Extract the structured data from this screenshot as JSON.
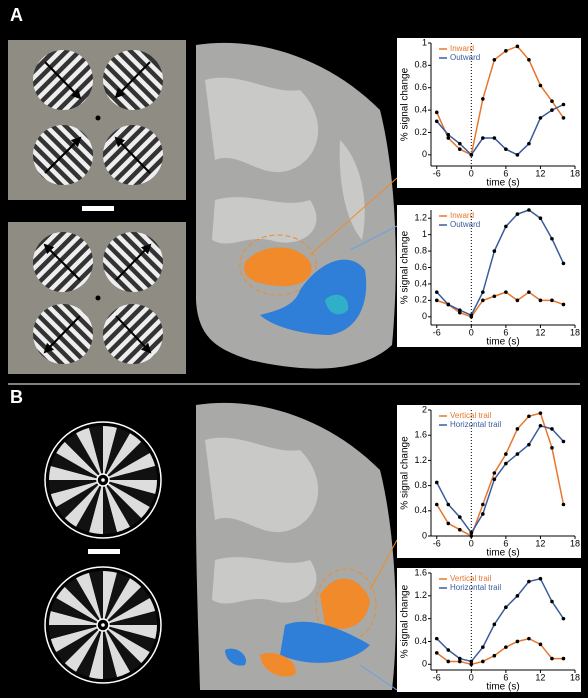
{
  "panel_labels": [
    "A",
    "B"
  ],
  "chart_data": [
    {
      "type": "line",
      "xlabel": "time (s)",
      "ylabel": "% signal change",
      "x": [
        -6,
        -4,
        -2,
        0,
        2,
        4,
        6,
        8,
        10,
        12,
        14,
        16
      ],
      "xlim": [
        -7,
        18
      ],
      "xticks": [
        -6,
        0,
        6,
        12,
        18
      ],
      "ylim": [
        -0.1,
        1.0
      ],
      "yticks": [
        0,
        0.2,
        0.4,
        0.6,
        0.8,
        1
      ],
      "series": [
        {
          "name": "Inward",
          "color": "#e8762d",
          "values": [
            0.38,
            0.15,
            0.05,
            0.0,
            0.5,
            0.85,
            0.93,
            0.97,
            0.85,
            0.62,
            0.48,
            0.33
          ]
        },
        {
          "name": "Outward",
          "color": "#3a5c9c",
          "values": [
            0.3,
            0.18,
            0.1,
            0.0,
            0.15,
            0.15,
            0.05,
            0.0,
            0.1,
            0.33,
            0.4,
            0.45
          ]
        }
      ]
    },
    {
      "type": "line",
      "xlabel": "time (s)",
      "ylabel": "% signal change",
      "x": [
        -6,
        -4,
        -2,
        0,
        2,
        4,
        6,
        8,
        10,
        12,
        14,
        16
      ],
      "xlim": [
        -7,
        18
      ],
      "xticks": [
        -6,
        0,
        6,
        12,
        18
      ],
      "ylim": [
        -0.1,
        1.3
      ],
      "yticks": [
        0,
        0.2,
        0.4,
        0.6,
        0.8,
        1,
        1.2
      ],
      "series": [
        {
          "name": "Inward",
          "color": "#e8762d",
          "values": [
            0.2,
            0.15,
            0.05,
            0.0,
            0.2,
            0.25,
            0.3,
            0.2,
            0.3,
            0.2,
            0.2,
            0.15
          ]
        },
        {
          "name": "Outward",
          "color": "#3a5c9c",
          "values": [
            0.3,
            0.15,
            0.08,
            0.02,
            0.3,
            0.8,
            1.1,
            1.25,
            1.3,
            1.2,
            0.95,
            0.65
          ]
        }
      ]
    },
    {
      "type": "line",
      "xlabel": "time (s)",
      "ylabel": "% signal change",
      "x": [
        -6,
        -4,
        -2,
        0,
        2,
        4,
        6,
        8,
        10,
        12,
        14,
        16
      ],
      "xlim": [
        -7,
        18
      ],
      "xticks": [
        -6,
        0,
        6,
        12,
        18
      ],
      "ylim": [
        0,
        2
      ],
      "yticks": [
        0,
        0.4,
        0.8,
        1.2,
        1.6,
        2
      ],
      "series": [
        {
          "name": "Vertical trail",
          "color": "#e8762d",
          "values": [
            0.5,
            0.2,
            0.1,
            0.0,
            0.5,
            1.0,
            1.3,
            1.7,
            1.9,
            1.95,
            1.4,
            0.5
          ]
        },
        {
          "name": "Horizontal trail",
          "color": "#3a5c9c",
          "values": [
            0.85,
            0.5,
            0.3,
            0.05,
            0.35,
            0.9,
            1.15,
            1.3,
            1.45,
            1.75,
            1.7,
            1.5
          ]
        }
      ]
    },
    {
      "type": "line",
      "xlabel": "time (s)",
      "ylabel": "% signal change",
      "x": [
        -6,
        -4,
        -2,
        0,
        2,
        4,
        6,
        8,
        10,
        12,
        14,
        16
      ],
      "xlim": [
        -7,
        18
      ],
      "xticks": [
        -6,
        0,
        6,
        12,
        18
      ],
      "ylim": [
        -0.1,
        1.6
      ],
      "yticks": [
        0,
        0.4,
        0.8,
        1.2,
        1.6
      ],
      "series": [
        {
          "name": "Vertical trail",
          "color": "#e8762d",
          "values": [
            0.2,
            0.05,
            0.05,
            0.0,
            0.05,
            0.15,
            0.3,
            0.4,
            0.45,
            0.35,
            0.1,
            0.1
          ]
        },
        {
          "name": "Horizontal trail",
          "color": "#3a5c9c",
          "values": [
            0.45,
            0.25,
            0.1,
            0.05,
            0.3,
            0.7,
            1.0,
            1.2,
            1.45,
            1.5,
            1.1,
            0.8
          ]
        }
      ]
    }
  ]
}
